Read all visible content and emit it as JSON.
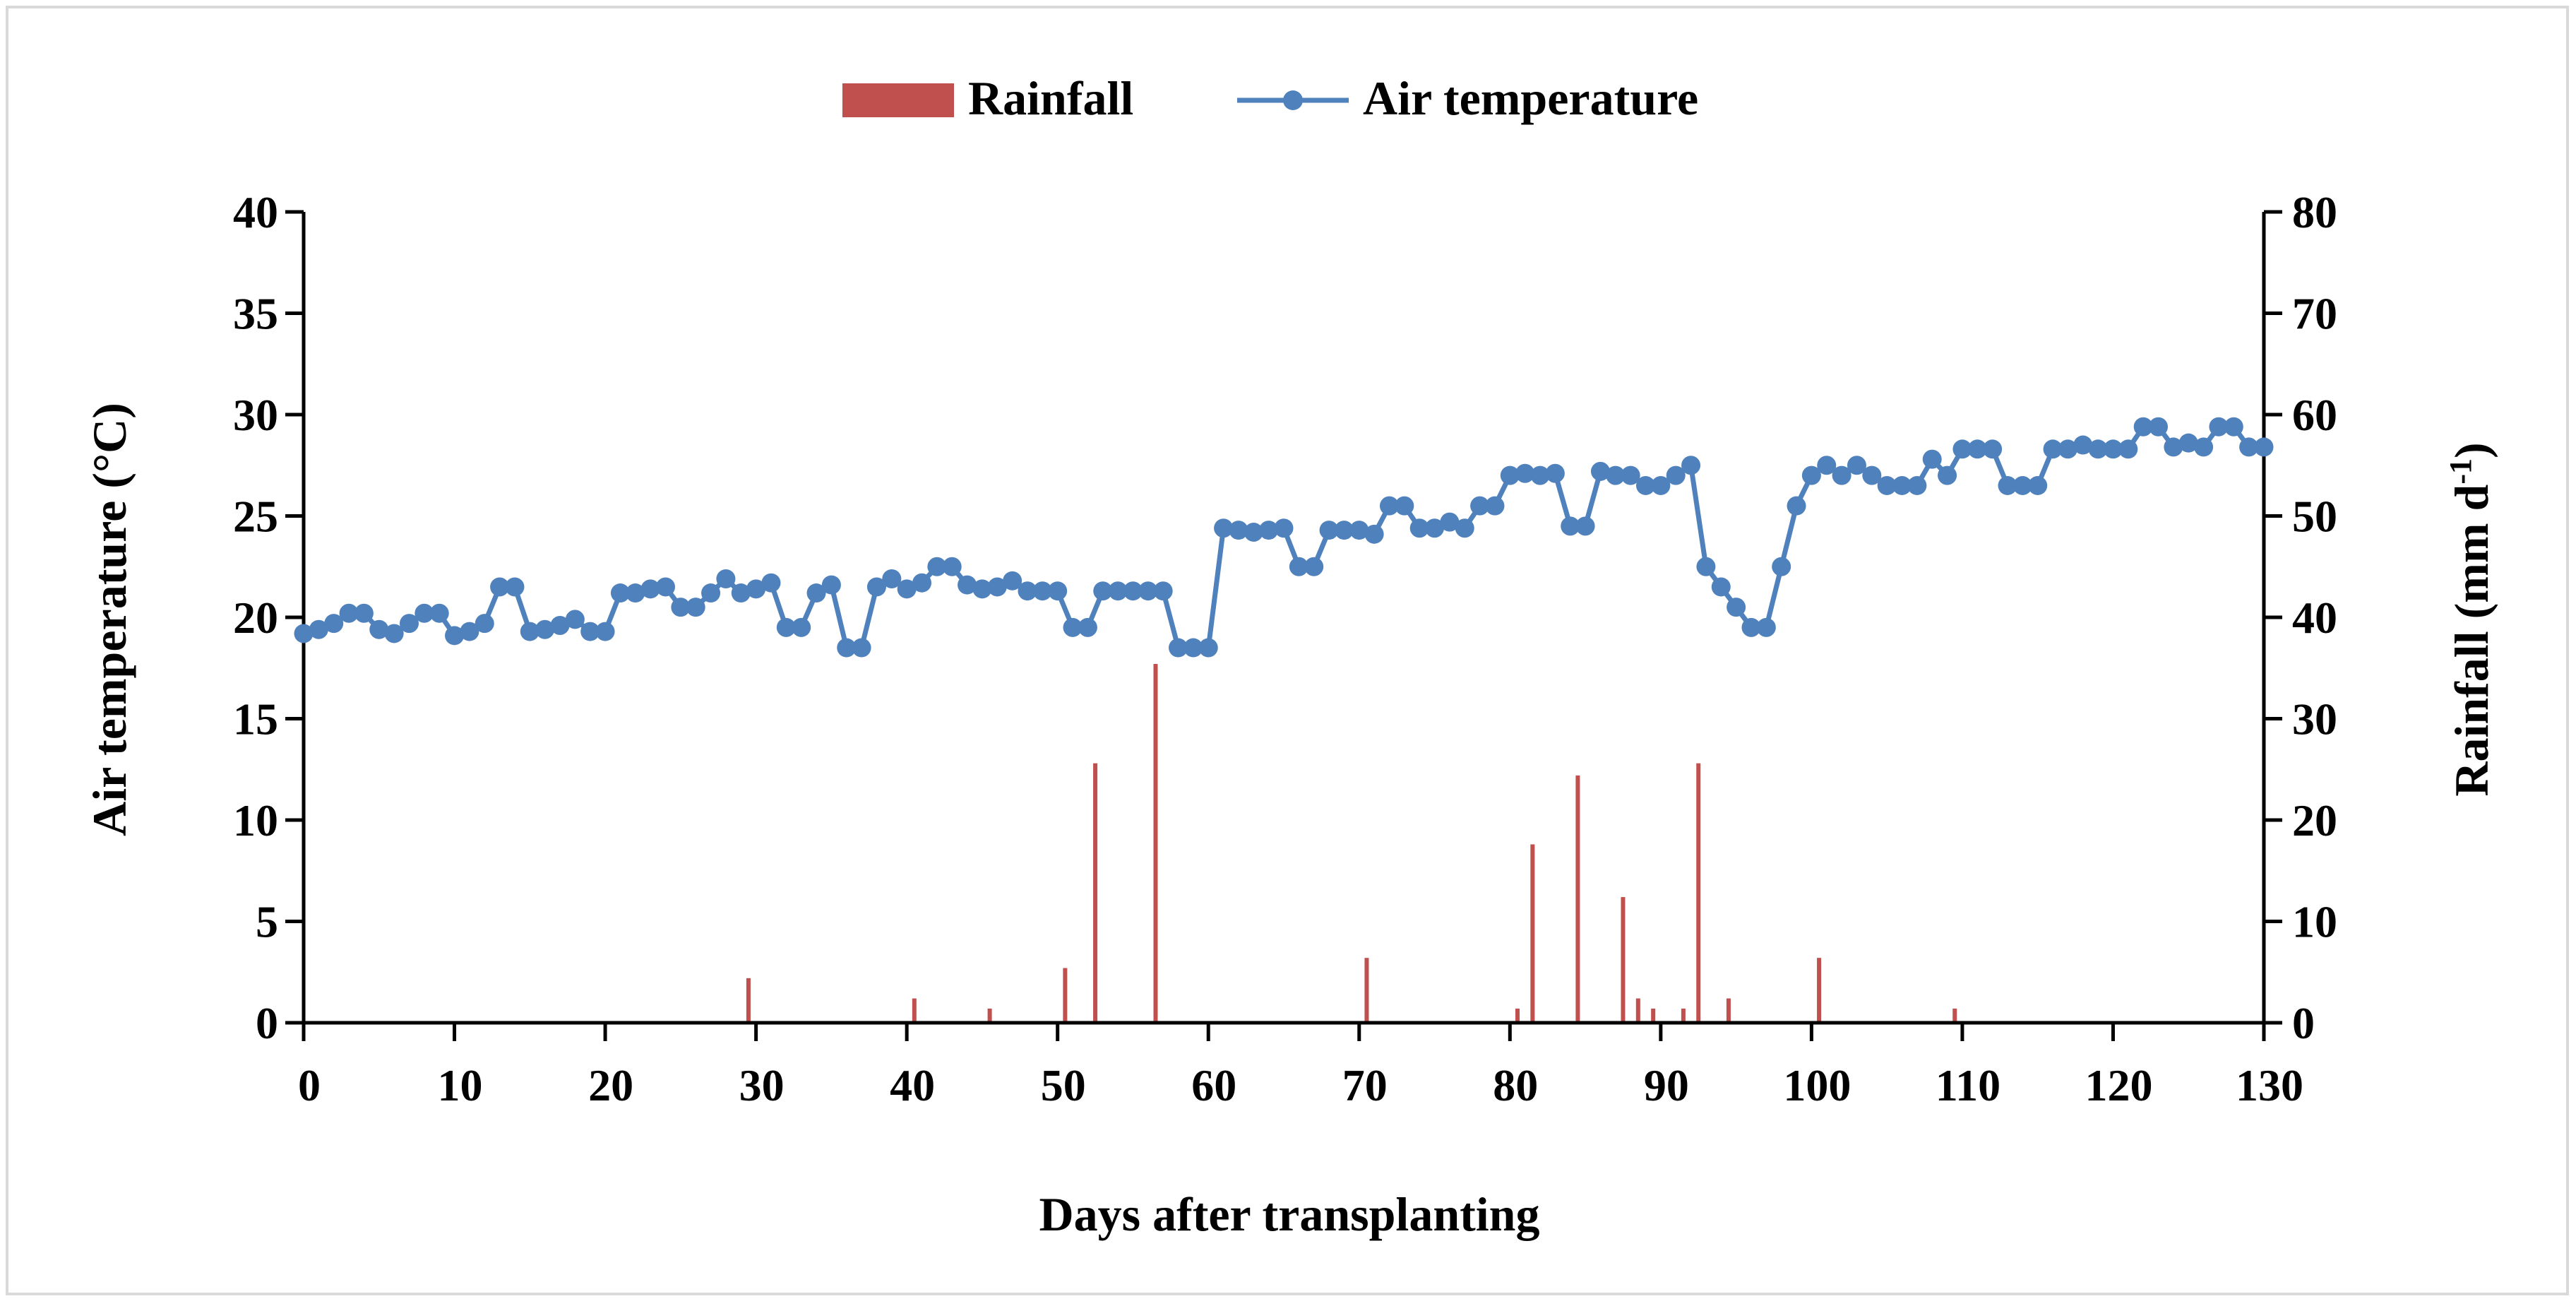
{
  "chart_data": {
    "type": "bar+line",
    "xlabel": "Days after transplanting",
    "ylabel_left": "Air temperature (°C)",
    "ylabel_right_main": "Rainfall (mm d",
    "ylabel_right_sup": "-1",
    "ylabel_right_close": ")",
    "xlim": [
      0,
      130
    ],
    "ylim_left": [
      0,
      40
    ],
    "ylim_right": [
      0,
      80
    ],
    "x_ticks": [
      0,
      10,
      20,
      30,
      40,
      50,
      60,
      70,
      80,
      90,
      100,
      110,
      120,
      130
    ],
    "y_left_ticks": [
      0,
      5,
      10,
      15,
      20,
      25,
      30,
      35,
      40
    ],
    "y_right_ticks": [
      0,
      10,
      20,
      30,
      40,
      50,
      60,
      70,
      80
    ],
    "legend": [
      {
        "name": "Rainfall",
        "kind": "bar"
      },
      {
        "name": "Air temperature",
        "kind": "line-marker"
      }
    ],
    "colors": {
      "rainfall": "#C0504D",
      "temperature": "#4F81BD",
      "axis": "#000000",
      "frame": "#D9D9D9"
    },
    "series": [
      {
        "name": "Rainfall",
        "axis": "right",
        "points": [
          {
            "x": 29,
            "y": 4.4
          },
          {
            "x": 40,
            "y": 2.4
          },
          {
            "x": 45,
            "y": 1.4
          },
          {
            "x": 50,
            "y": 5.4
          },
          {
            "x": 52,
            "y": 25.6
          },
          {
            "x": 56,
            "y": 35.4
          },
          {
            "x": 70,
            "y": 6.4
          },
          {
            "x": 80,
            "y": 1.4
          },
          {
            "x": 81,
            "y": 17.6
          },
          {
            "x": 84,
            "y": 24.4
          },
          {
            "x": 87,
            "y": 12.4
          },
          {
            "x": 88,
            "y": 2.4
          },
          {
            "x": 89,
            "y": 1.4
          },
          {
            "x": 91,
            "y": 1.4
          },
          {
            "x": 92,
            "y": 25.6
          },
          {
            "x": 94,
            "y": 2.4
          },
          {
            "x": 100,
            "y": 6.4
          },
          {
            "x": 109,
            "y": 1.4
          }
        ]
      },
      {
        "name": "Air temperature",
        "axis": "left",
        "x": [
          0,
          1,
          2,
          3,
          4,
          5,
          6,
          7,
          8,
          9,
          10,
          11,
          12,
          13,
          14,
          15,
          16,
          17,
          18,
          19,
          20,
          21,
          22,
          23,
          24,
          25,
          26,
          27,
          28,
          29,
          30,
          31,
          32,
          33,
          34,
          35,
          36,
          37,
          38,
          39,
          40,
          41,
          42,
          43,
          44,
          45,
          46,
          47,
          48,
          49,
          50,
          51,
          52,
          53,
          54,
          55,
          56,
          57,
          58,
          59,
          60,
          61,
          62,
          63,
          64,
          65,
          66,
          67,
          68,
          69,
          70,
          71,
          72,
          73,
          74,
          75,
          76,
          77,
          78,
          79,
          80,
          81,
          82,
          83,
          84,
          85,
          86,
          87,
          88,
          89,
          90,
          91,
          92,
          93,
          94,
          95,
          96,
          97,
          98,
          99,
          100,
          101,
          102,
          103,
          104,
          105,
          106,
          107,
          108,
          109,
          110,
          111,
          112,
          113,
          114,
          115,
          116,
          117,
          118,
          119,
          120,
          121,
          122,
          123,
          124,
          125,
          126,
          127,
          128,
          129,
          130
        ],
        "values": [
          19.2,
          19.4,
          19.7,
          20.2,
          20.2,
          19.4,
          19.2,
          19.7,
          20.2,
          20.2,
          19.1,
          19.3,
          19.7,
          21.5,
          21.5,
          19.3,
          19.4,
          19.6,
          19.9,
          19.3,
          19.3,
          21.2,
          21.2,
          21.4,
          21.5,
          20.5,
          20.5,
          21.2,
          21.9,
          21.2,
          21.4,
          21.7,
          19.5,
          19.5,
          21.2,
          21.6,
          18.5,
          18.5,
          21.5,
          21.9,
          21.4,
          21.7,
          22.5,
          22.5,
          21.6,
          21.4,
          21.5,
          21.8,
          21.3,
          21.3,
          21.3,
          19.5,
          19.5,
          21.3,
          21.3,
          21.3,
          21.3,
          21.3,
          18.5,
          18.5,
          18.5,
          24.4,
          24.3,
          24.2,
          24.3,
          24.4,
          22.5,
          22.5,
          24.3,
          24.3,
          24.3,
          24.1,
          25.5,
          25.5,
          24.4,
          24.4,
          24.7,
          24.4,
          25.5,
          25.5,
          27.0,
          27.1,
          27.0,
          27.1,
          24.5,
          24.5,
          27.2,
          27.0,
          27.0,
          26.5,
          26.5,
          27.0,
          27.5,
          22.5,
          21.5,
          20.5,
          19.5,
          19.5,
          22.5,
          25.5,
          27.0,
          27.5,
          27.0,
          27.5,
          27.0,
          26.5,
          26.5,
          26.5,
          27.8,
          27.0,
          28.3,
          28.3,
          28.3,
          26.5,
          26.5,
          26.5,
          28.3,
          28.3,
          28.5,
          28.3,
          28.3,
          28.3,
          29.4,
          29.4,
          28.4,
          28.6,
          28.4,
          29.4,
          29.4,
          28.4,
          28.4
        ]
      }
    ]
  }
}
